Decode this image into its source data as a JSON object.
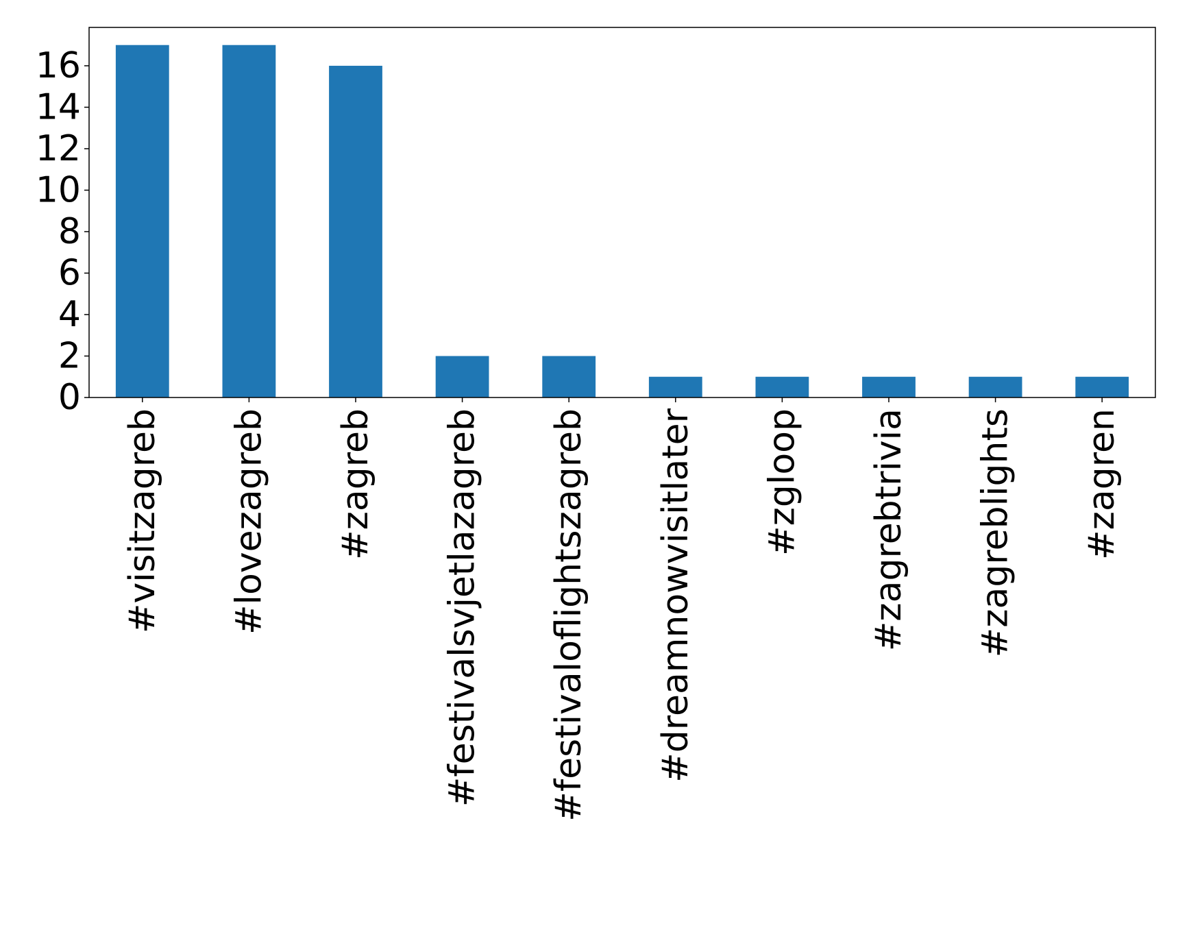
{
  "chart_data": {
    "type": "bar",
    "title": "",
    "xlabel": "",
    "ylabel": "",
    "categories": [
      "#visitzagreb",
      "#lovezagreb",
      "#zagreb",
      "#festivalsvjetlazagreb",
      "#festivaloflightszagreb",
      "#dreamnowvisitlater",
      "#zgloop",
      "#zagrebtrivia",
      "#zagreblights",
      "#zagren"
    ],
    "values": [
      17,
      17,
      16,
      2,
      2,
      1,
      1,
      1,
      1,
      1
    ],
    "ylim": [
      0,
      17.85
    ],
    "yticks": [
      0,
      2,
      4,
      6,
      8,
      10,
      12,
      14,
      16
    ],
    "grid": false,
    "bar_color": "#1f77b4"
  }
}
